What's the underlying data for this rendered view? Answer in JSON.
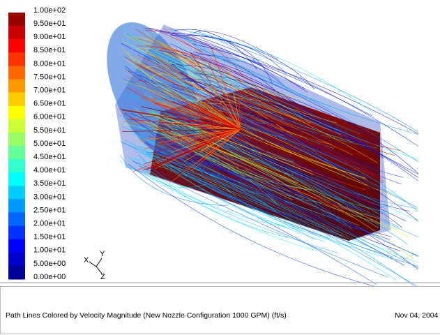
{
  "legend": {
    "labels": [
      "1.00e+02",
      "9.50e+01",
      "9.00e+01",
      "8.50e+01",
      "8.00e+01",
      "7.50e+01",
      "7.00e+01",
      "6.50e+01",
      "6.00e+01",
      "5.50e+01",
      "5.00e+01",
      "4.50e+01",
      "4.00e+01",
      "3.50e+01",
      "3.00e+01",
      "2.50e+01",
      "2.00e+01",
      "1.50e+01",
      "1.00e+01",
      "5.00e+00",
      "0.00e+00"
    ]
  },
  "triad": {
    "x": "X",
    "y": "Y",
    "z": "Z"
  },
  "caption": {
    "title": "Path Lines Colored by Velocity Magnitude (New Nozzle Configuration 1000 GPM) (ft/s)",
    "date": "Nov 04, 2004"
  }
}
